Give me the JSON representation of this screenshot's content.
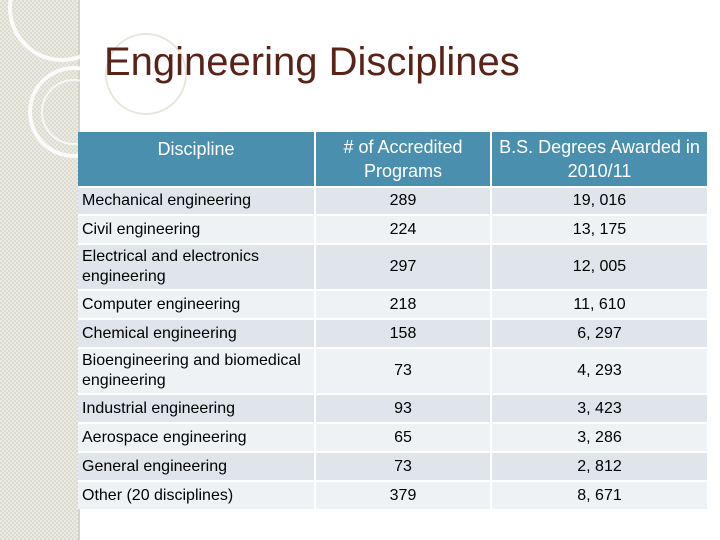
{
  "slide": {
    "title": "Engineering Disciplines"
  },
  "table": {
    "headers": {
      "discipline": "Discipline",
      "programs": "# of Accredited Programs",
      "degrees": "B.S. Degrees Awarded in 2010/11"
    },
    "rows": [
      {
        "discipline": "Mechanical engineering",
        "programs": "289",
        "degrees": "19, 016"
      },
      {
        "discipline": "Civil engineering",
        "programs": "224",
        "degrees": "13, 175"
      },
      {
        "discipline": "Electrical and electronics engineering",
        "programs": "297",
        "degrees": "12, 005"
      },
      {
        "discipline": "Computer engineering",
        "programs": "218",
        "degrees": "11, 610"
      },
      {
        "discipline": "Chemical engineering",
        "programs": "158",
        "degrees": "6, 297"
      },
      {
        "discipline": "Bioengineering and biomedical engineering",
        "programs": "73",
        "degrees": "4, 293"
      },
      {
        "discipline": "Industrial engineering",
        "programs": "93",
        "degrees": "3, 423"
      },
      {
        "discipline": "Aerospace engineering",
        "programs": "65",
        "degrees": "3, 286"
      },
      {
        "discipline": "General engineering",
        "programs": "73",
        "degrees": "2, 812"
      },
      {
        "discipline": "Other (20 disciplines)",
        "programs": "379",
        "degrees": "8, 671"
      }
    ]
  },
  "colors": {
    "title": "#5a2318",
    "header_bg": "#4a8fad",
    "row_bg": "#dfe5ea",
    "row_alt_bg": "#eff2f5"
  }
}
